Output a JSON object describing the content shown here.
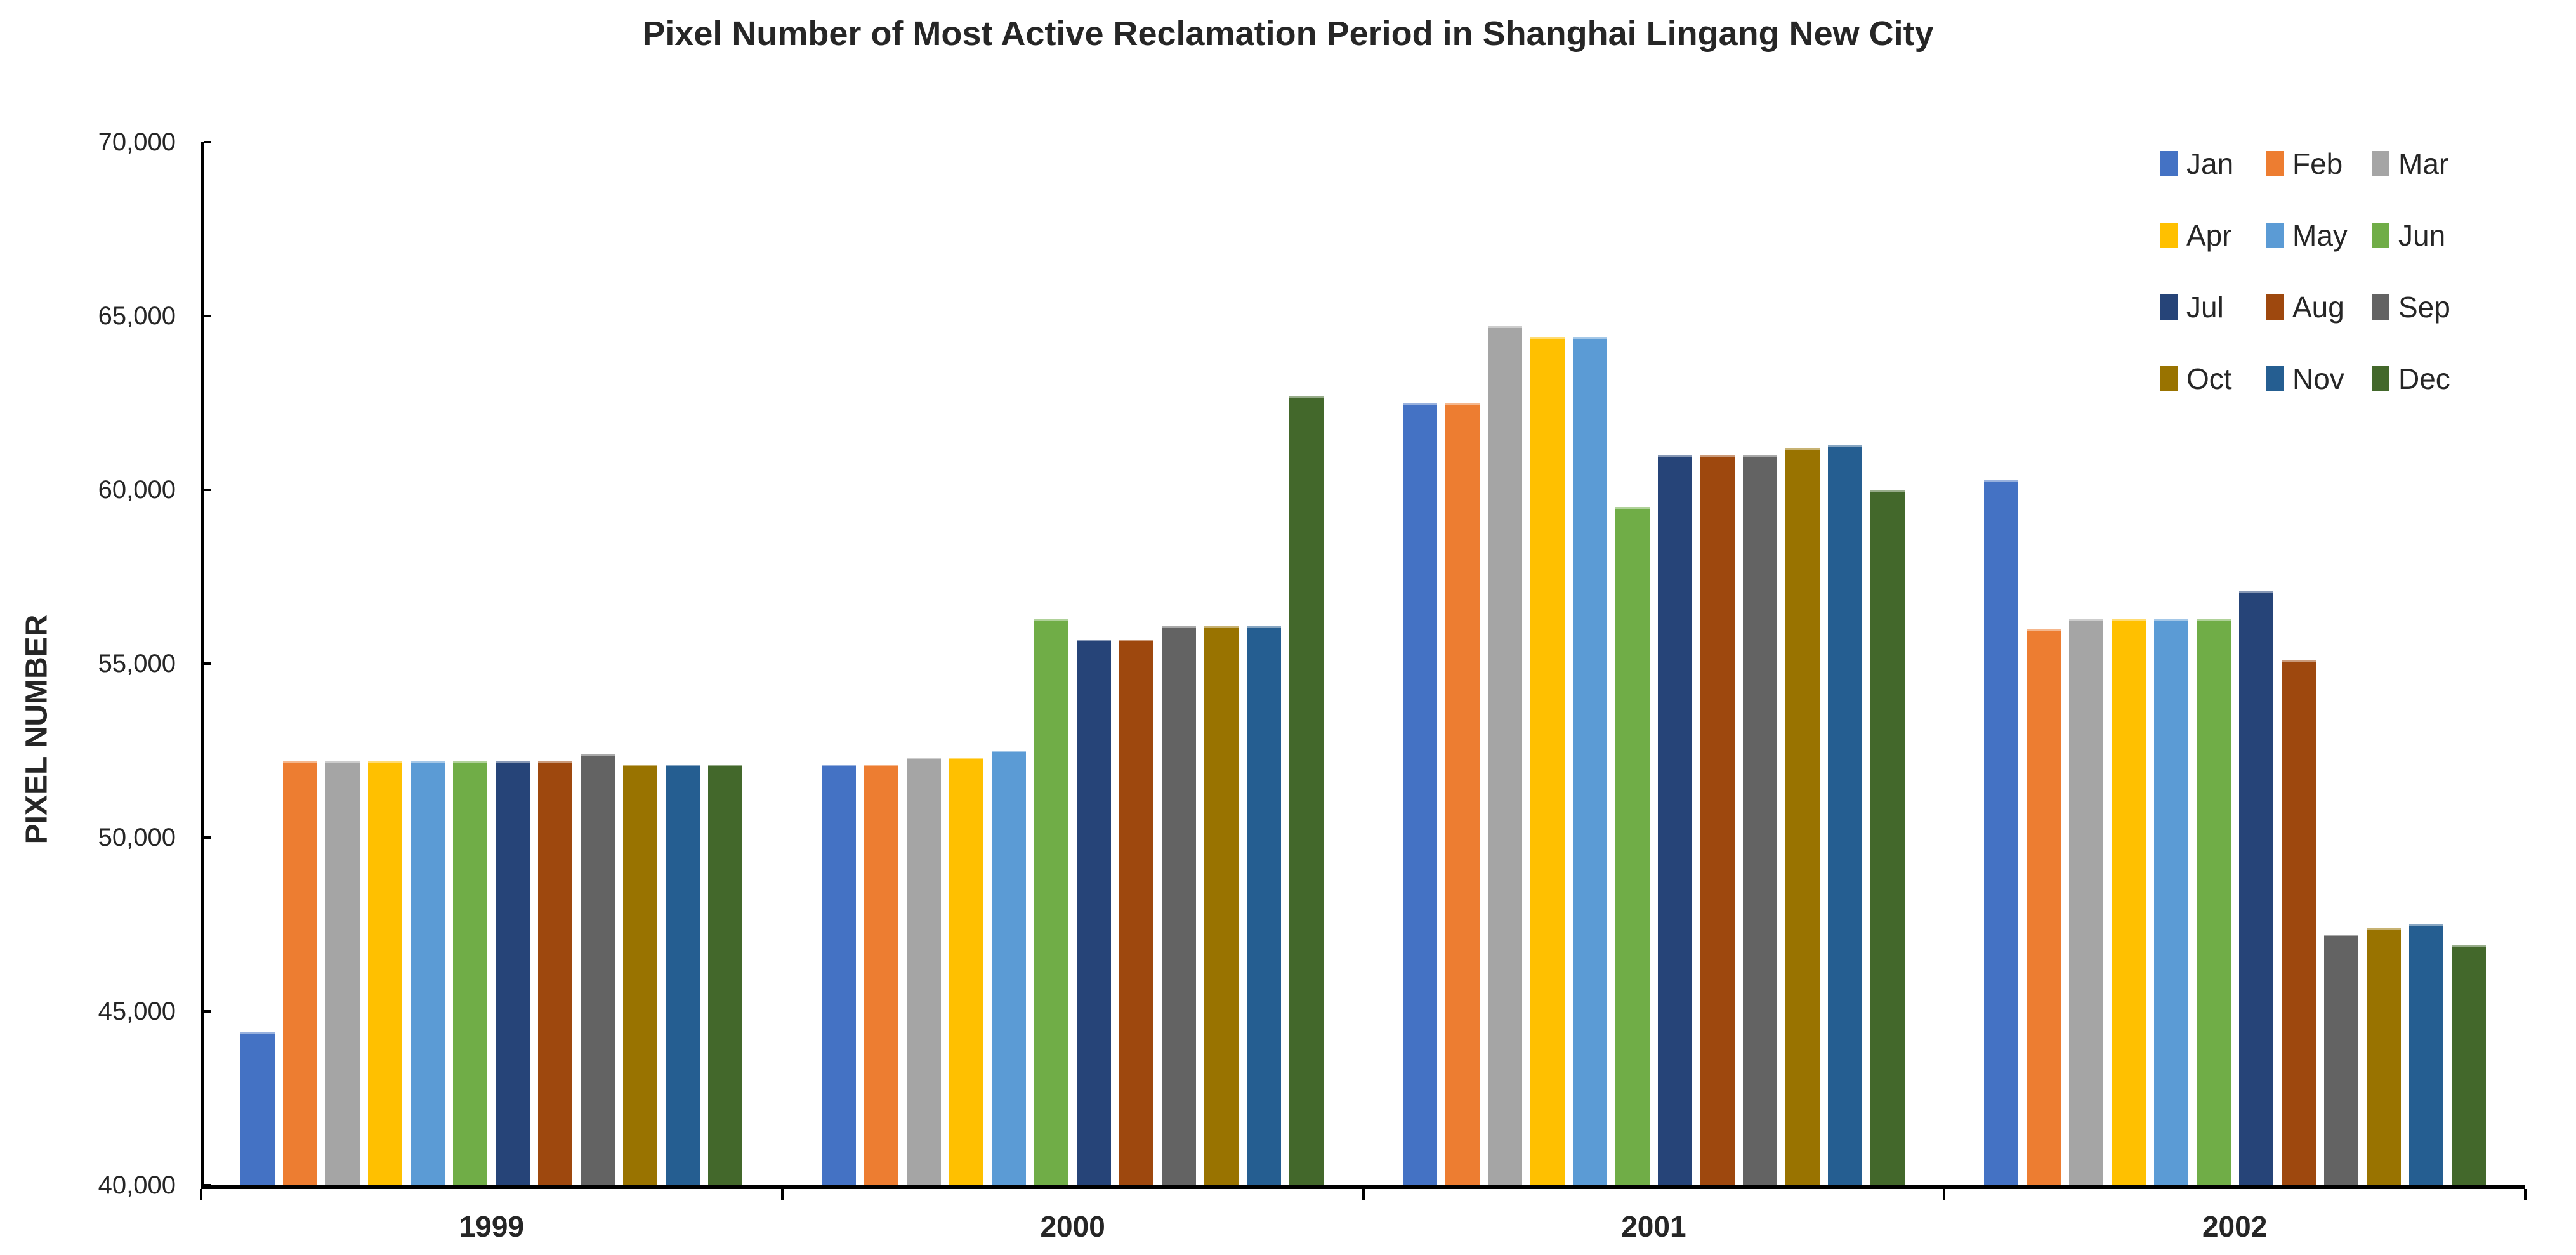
{
  "title": "Pixel Number of Most Active Reclamation Period in Shanghai Lingang New City",
  "chart_data": {
    "type": "bar",
    "title": "Pixel Number of Most Active Reclamation Period in Shanghai Lingang New City",
    "xlabel": "",
    "ylabel": "PIXEL NUMBER",
    "categories": [
      "1999",
      "2000",
      "2001",
      "2002"
    ],
    "series": [
      {
        "name": "Jan",
        "color": "#4472C4",
        "values": [
          44400,
          52100,
          62500,
          60300
        ]
      },
      {
        "name": "Feb",
        "color": "#ED7D31",
        "values": [
          52200,
          52100,
          62500,
          56000
        ]
      },
      {
        "name": "Mar",
        "color": "#A5A5A5",
        "values": [
          52200,
          52300,
          64700,
          56300
        ]
      },
      {
        "name": "Apr",
        "color": "#FFC000",
        "values": [
          52200,
          52300,
          64400,
          56300
        ]
      },
      {
        "name": "May",
        "color": "#5B9BD5",
        "values": [
          52200,
          52500,
          64400,
          56300
        ]
      },
      {
        "name": "Jun",
        "color": "#70AD47",
        "values": [
          52200,
          56300,
          59500,
          56300
        ]
      },
      {
        "name": "Jul",
        "color": "#264478",
        "values": [
          52200,
          55700,
          61000,
          57100
        ]
      },
      {
        "name": "Aug",
        "color": "#9E480E",
        "values": [
          52200,
          55700,
          61000,
          55100
        ]
      },
      {
        "name": "Sep",
        "color": "#636363",
        "values": [
          52400,
          56100,
          61000,
          47200
        ]
      },
      {
        "name": "Oct",
        "color": "#997300",
        "values": [
          52100,
          56100,
          61200,
          47400
        ]
      },
      {
        "name": "Nov",
        "color": "#255E91",
        "values": [
          52100,
          56100,
          61300,
          47500
        ]
      },
      {
        "name": "Dec",
        "color": "#43682B",
        "values": [
          52100,
          62700,
          60000,
          46900
        ]
      }
    ],
    "ylim": [
      40000,
      70000
    ],
    "ytick_interval": 5000,
    "ytick_labels": [
      "40,000",
      "45,000",
      "50,000",
      "55,000",
      "60,000",
      "65,000",
      "70,000"
    ],
    "grid": false,
    "legend_position": "top-right",
    "legend_columns": 3,
    "legend_rows": [
      [
        "Jan",
        "Feb",
        "Mar"
      ],
      [
        "Apr",
        "May",
        "Jun"
      ],
      [
        "Jul",
        "Aug",
        "Sep"
      ],
      [
        "Oct",
        "Nov",
        "Dec"
      ]
    ]
  }
}
